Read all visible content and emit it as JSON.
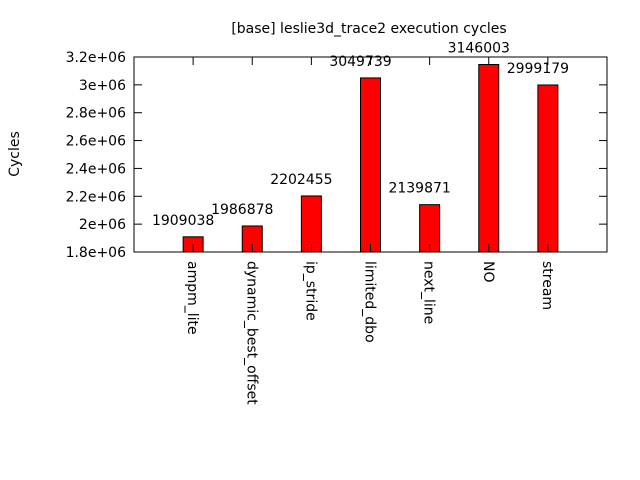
{
  "chart_data": {
    "type": "bar",
    "title": "[base] leslie3d_trace2 execution cycles",
    "xlabel": "",
    "ylabel": "Cycles",
    "categories": [
      "ampm_lite",
      "dynamic_best_offset",
      "ip_stride",
      "limited_dbo",
      "next_line",
      "NO",
      "stream"
    ],
    "values": [
      1909038,
      1986878,
      2202455,
      3049739,
      2139871,
      3146003,
      2999179
    ],
    "data_labels": [
      "1909038",
      "1986878",
      "2202455",
      "3049739",
      "2139871",
      "3146003",
      "2999179"
    ],
    "ylim": [
      1800000,
      3200000
    ],
    "yticks": [
      1800000,
      2000000,
      2200000,
      2400000,
      2600000,
      2800000,
      3000000,
      3200000
    ],
    "ytick_labels": [
      "1.8e+06",
      "2e+06",
      "2.2e+06",
      "2.4e+06",
      "2.6e+06",
      "2.8e+06",
      "3e+06",
      "3.2e+06"
    ],
    "bar_color": "#ff0000",
    "grid": false,
    "legend": "none"
  }
}
